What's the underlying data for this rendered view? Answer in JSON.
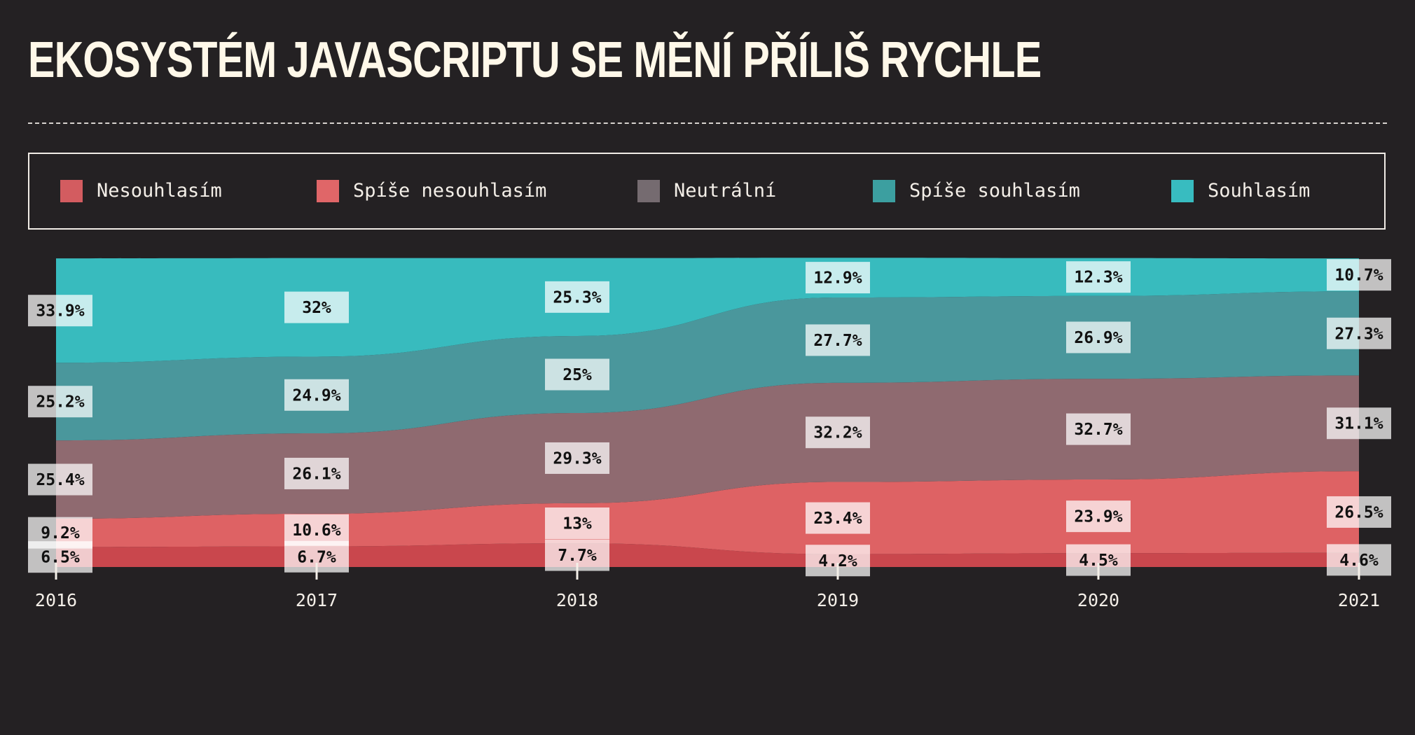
{
  "title": "EKOSYSTÉM JAVASCRIPTU SE MĚNÍ PŘÍLIŠ RYCHLE",
  "legend": [
    {
      "label": "Nesouhlasím",
      "color": "#d35c60"
    },
    {
      "label": "Spíše nesouhlasím",
      "color": "#e06668"
    },
    {
      "label": "Neutrální",
      "color": "#756b70"
    },
    {
      "label": "Spíše souhlasím",
      "color": "#3c9fa0"
    },
    {
      "label": "Souhlasím",
      "color": "#38bcc0"
    }
  ],
  "chart_data": {
    "type": "area",
    "stacked": true,
    "normalized_percent": true,
    "x": [
      "2016",
      "2017",
      "2018",
      "2019",
      "2020",
      "2021"
    ],
    "series": [
      {
        "name": "Nesouhlasím",
        "color": "#c9474d",
        "values": [
          6.5,
          6.7,
          7.7,
          4.2,
          4.5,
          4.6
        ],
        "labels": [
          "6.5%",
          "6.7%",
          "7.7%",
          "4.2%",
          "4.5%",
          "4.6%"
        ]
      },
      {
        "name": "Spíše nesouhlasím",
        "color": "#de6264",
        "values": [
          9.2,
          10.6,
          13,
          23.4,
          23.9,
          26.5
        ],
        "labels": [
          "9.2%",
          "10.6%",
          "13%",
          "23.4%",
          "23.9%",
          "26.5%"
        ]
      },
      {
        "name": "Neutrální",
        "color": "#8f6a70",
        "values": [
          25.4,
          26.1,
          29.3,
          32.2,
          32.7,
          31.1
        ],
        "labels": [
          "25.4%",
          "26.1%",
          "29.3%",
          "32.2%",
          "32.7%",
          "31.1%"
        ]
      },
      {
        "name": "Spíše souhlasím",
        "color": "#4a979c",
        "values": [
          25.2,
          24.9,
          25,
          27.7,
          26.9,
          27.3
        ],
        "labels": [
          "25.2%",
          "24.9%",
          "25%",
          "27.7%",
          "26.9%",
          "27.3%"
        ]
      },
      {
        "name": "Souhlasím",
        "color": "#38bbbe",
        "values": [
          33.9,
          32,
          25.3,
          12.9,
          12.3,
          10.7
        ],
        "labels": [
          "33.9%",
          "32%",
          "25.3%",
          "12.9%",
          "12.3%",
          "10.7%"
        ]
      }
    ],
    "title": "EKOSYSTÉM JAVASCRIPTU SE MĚNÍ PŘÍLIŠ RYCHLE",
    "ylim": [
      0,
      100
    ],
    "legend_position": "top",
    "grid": false
  }
}
